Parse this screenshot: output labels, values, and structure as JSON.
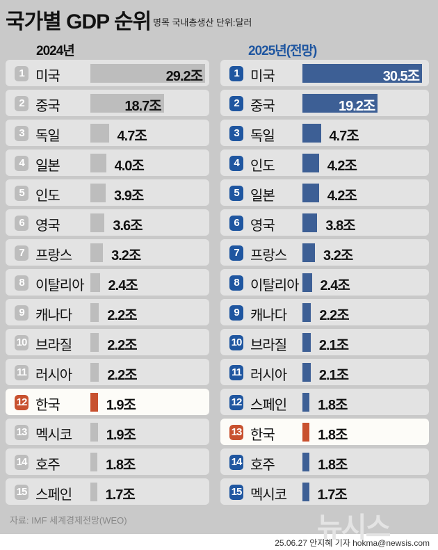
{
  "header": {
    "title": "국가별 GDP 순위",
    "subtitle": "명목 국내총생산 단위:달러"
  },
  "colors": {
    "bar_2024": "#bdbdbd",
    "badge_2024": "#bdbdbd",
    "bar_2025": "#3d5f95",
    "badge_2025": "#1f56a0",
    "korea": "#c8512f"
  },
  "chart_data": [
    {
      "type": "bar",
      "title": "2024년",
      "unit": "조",
      "highlight": "한국",
      "categories": [
        "미국",
        "중국",
        "독일",
        "일본",
        "인도",
        "영국",
        "프랑스",
        "이탈리아",
        "캐나다",
        "브라질",
        "러시아",
        "한국",
        "멕시코",
        "호주",
        "스페인"
      ],
      "values": [
        29.2,
        18.7,
        4.7,
        4.0,
        3.9,
        3.6,
        3.2,
        2.4,
        2.2,
        2.2,
        2.2,
        1.9,
        1.9,
        1.8,
        1.7
      ],
      "labels": [
        "29.2조",
        "18.7조",
        "4.7조",
        "4.0조",
        "3.9조",
        "3.6조",
        "3.2조",
        "2.4조",
        "2.2조",
        "2.2조",
        "2.2조",
        "1.9조",
        "1.9조",
        "1.8조",
        "1.7조"
      ]
    },
    {
      "type": "bar",
      "title": "2025년(전망)",
      "unit": "조",
      "highlight": "한국",
      "categories": [
        "미국",
        "중국",
        "독일",
        "인도",
        "일본",
        "영국",
        "프랑스",
        "이탈리아",
        "캐나다",
        "브라질",
        "러시아",
        "스페인",
        "한국",
        "호주",
        "멕시코"
      ],
      "values": [
        30.5,
        19.2,
        4.7,
        4.2,
        4.2,
        3.8,
        3.2,
        2.4,
        2.2,
        2.1,
        2.1,
        1.8,
        1.8,
        1.8,
        1.7
      ],
      "labels": [
        "30.5조",
        "19.2조",
        "4.7조",
        "4.2조",
        "4.2조",
        "3.8조",
        "3.2조",
        "2.4조",
        "2.2조",
        "2.1조",
        "2.1조",
        "1.8조",
        "1.8조",
        "1.8조",
        "1.7조"
      ]
    }
  ],
  "footer": {
    "source": "자료: IMF 세계경제전망(WEO)",
    "logo": "뉴시스",
    "credit": "25.06.27 안지혜 기자 hokma@newsis.com"
  }
}
